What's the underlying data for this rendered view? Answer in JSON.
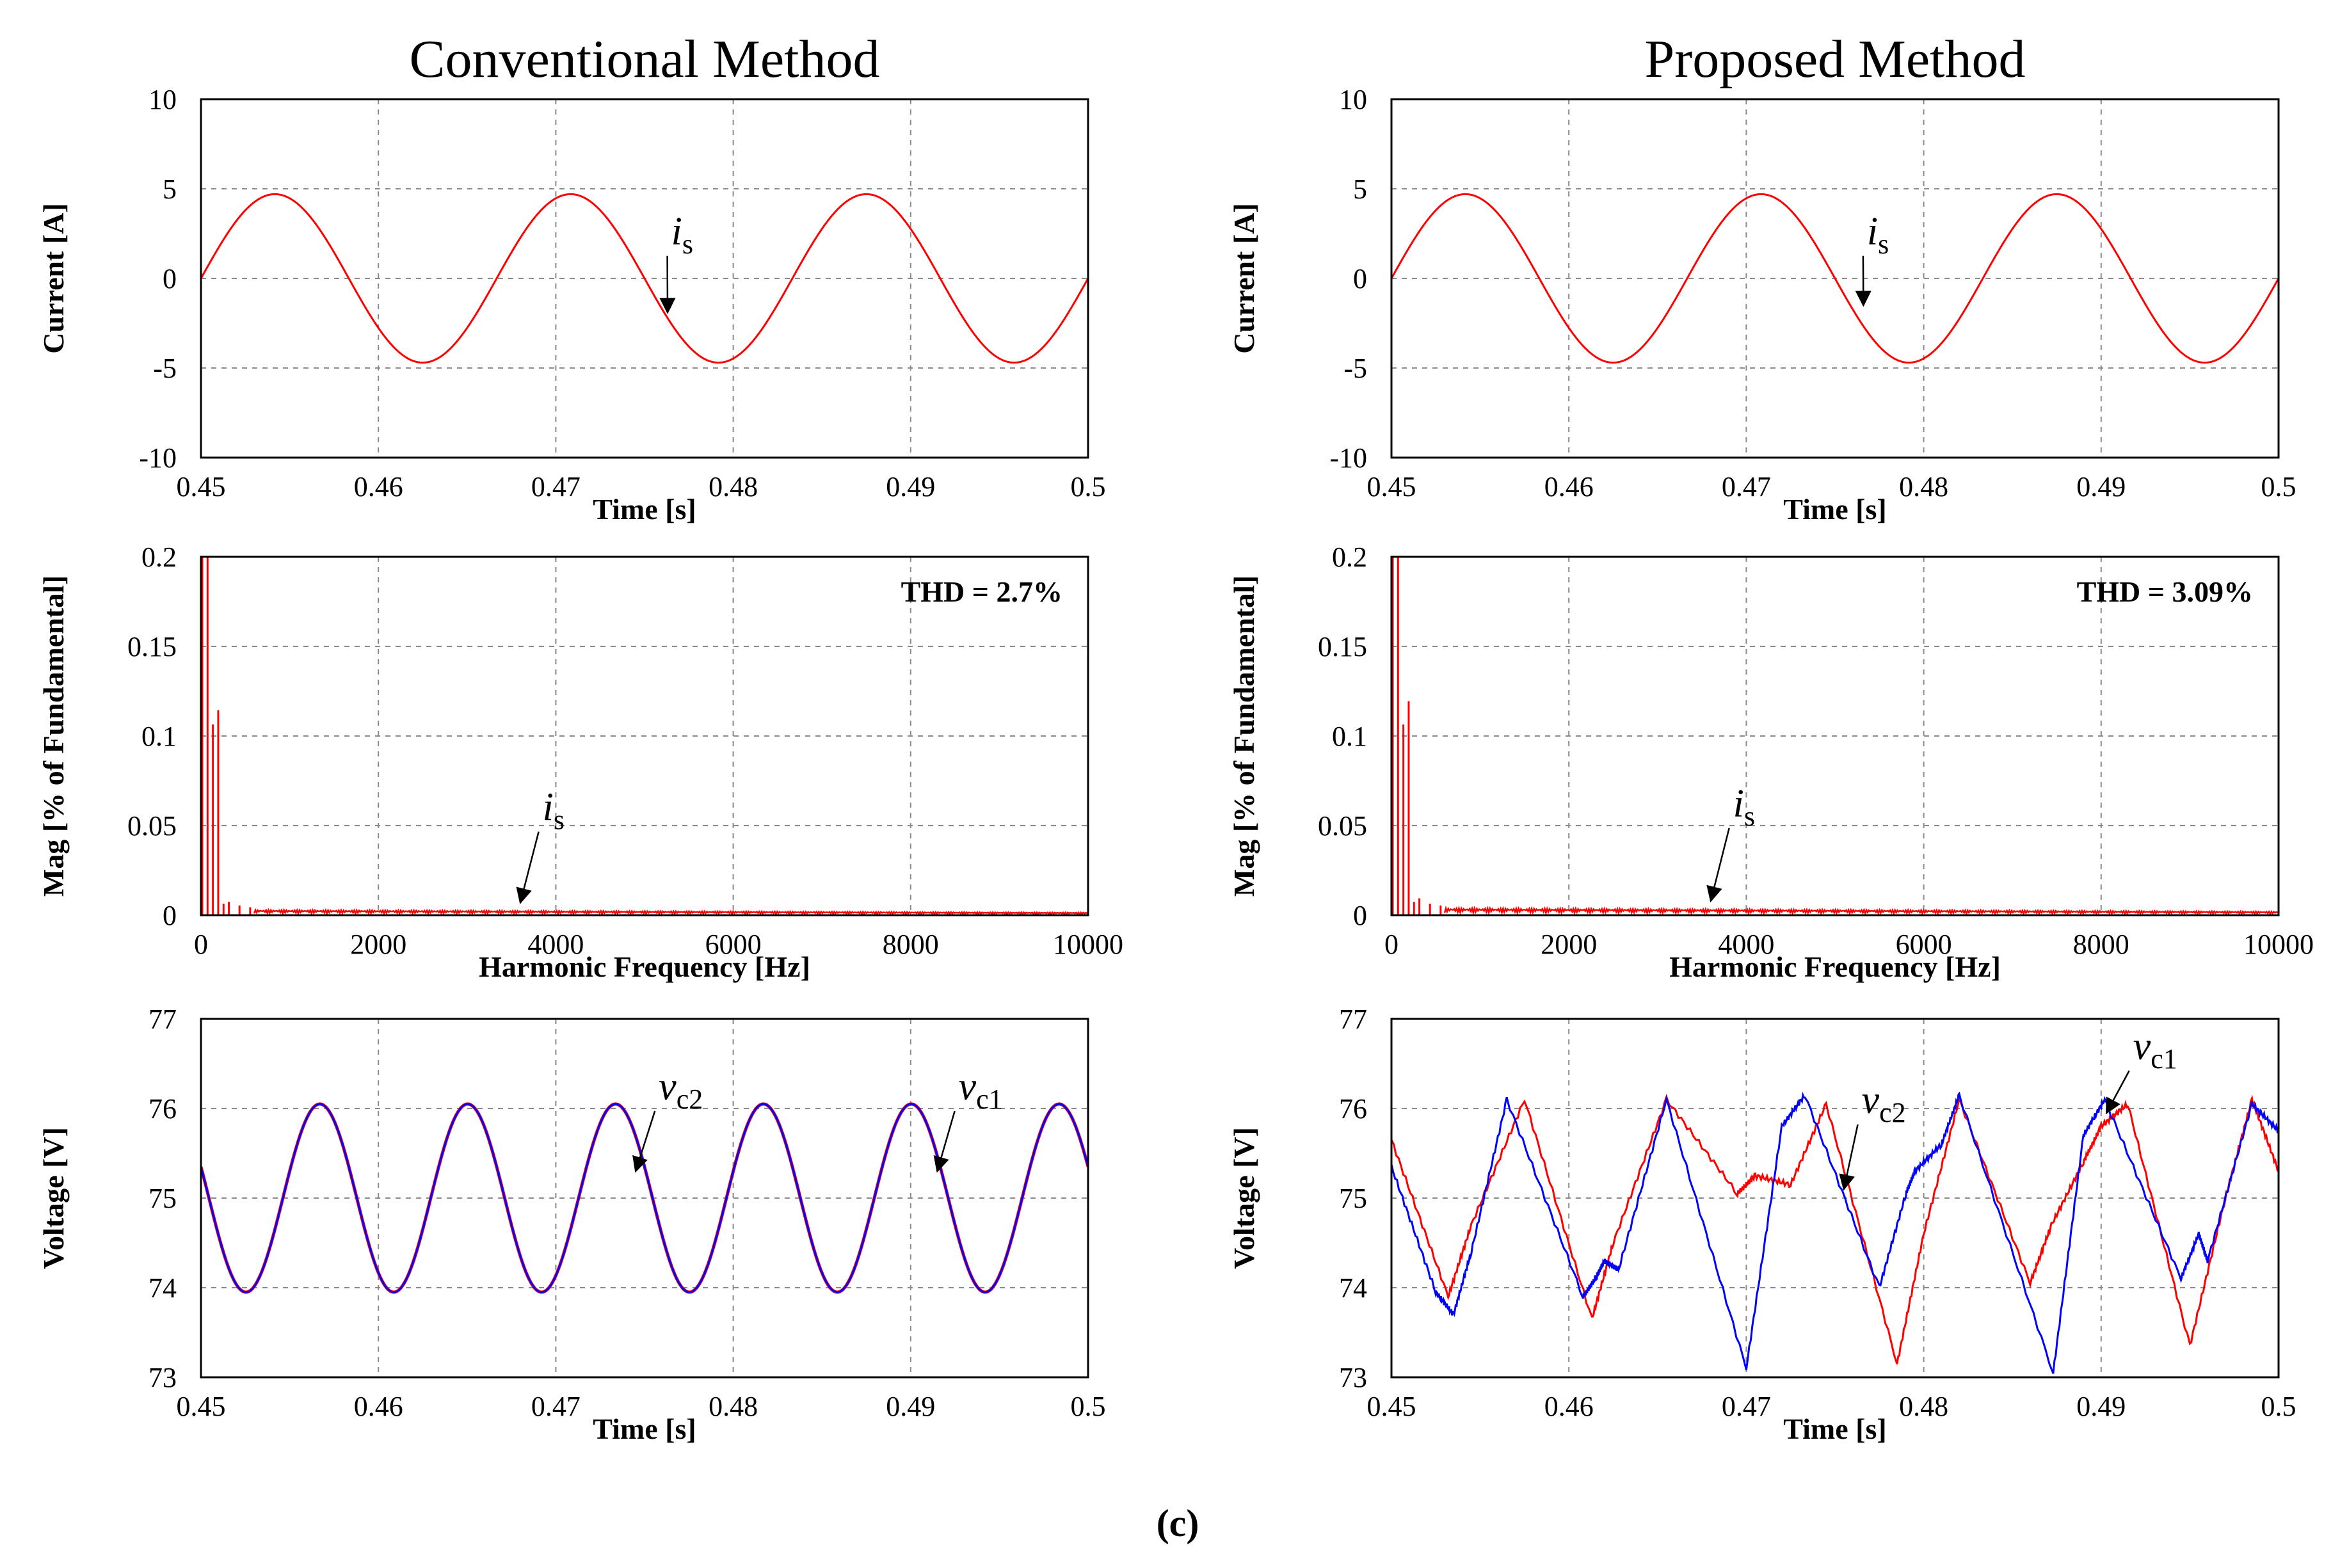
{
  "caption": "(c)",
  "chart_data": [
    {
      "id": "conv-current",
      "column": "left",
      "row": 0,
      "type": "line",
      "column_title": "Conventional Method",
      "xlabel": "Time [s]",
      "ylabel": "Current [A]",
      "xlim": [
        0.45,
        0.5
      ],
      "ylim": [
        -10,
        10
      ],
      "xticks": [
        0.45,
        0.46,
        0.47,
        0.48,
        0.49,
        0.5
      ],
      "xtick_labels": [
        "0.45",
        "0.46",
        "0.47",
        "0.48",
        "0.49",
        "0.5"
      ],
      "yticks": [
        10,
        5,
        0,
        -5,
        -10
      ],
      "ytick_labels": [
        "10",
        "5",
        "0",
        "-5",
        "-10"
      ],
      "grid": true,
      "series": [
        {
          "name": "i_s",
          "color": "#ff0000",
          "kind": "sine",
          "amplitude": 4.7,
          "offset": 0,
          "frequency": 60,
          "phase_time": 0.45
        }
      ],
      "annotations": [
        {
          "symbol": "i",
          "subscript": "s",
          "text_at": [
            0.4765,
            1.9
          ],
          "arrow_to": [
            0.4763,
            -1.9
          ]
        }
      ]
    },
    {
      "id": "prop-current",
      "column": "right",
      "row": 0,
      "type": "line",
      "column_title": "Proposed Method",
      "xlabel": "Time [s]",
      "ylabel": "Current [A]",
      "xlim": [
        0.45,
        0.5
      ],
      "ylim": [
        -10,
        10
      ],
      "xticks": [
        0.45,
        0.46,
        0.47,
        0.48,
        0.49,
        0.5
      ],
      "xtick_labels": [
        "0.45",
        "0.46",
        "0.47",
        "0.48",
        "0.49",
        "0.5"
      ],
      "yticks": [
        10,
        5,
        0,
        -5,
        -10
      ],
      "ytick_labels": [
        "10",
        "5",
        "0",
        "-5",
        "-10"
      ],
      "grid": true,
      "series": [
        {
          "name": "i_s",
          "color": "#ff0000",
          "kind": "sine",
          "amplitude": 4.7,
          "offset": 0,
          "frequency": 60,
          "phase_time": 0.45
        }
      ],
      "annotations": [
        {
          "symbol": "i",
          "subscript": "s",
          "text_at": [
            0.4768,
            1.9
          ],
          "arrow_to": [
            0.4766,
            -1.5
          ]
        }
      ]
    },
    {
      "id": "conv-fft",
      "column": "left",
      "row": 1,
      "type": "bar",
      "xlabel": "Harmonic Frequency [Hz]",
      "ylabel": "Mag [% of Fundamental]",
      "xlim": [
        0,
        10000
      ],
      "ylim": [
        0,
        0.2
      ],
      "xticks": [
        0,
        2000,
        4000,
        6000,
        8000,
        10000
      ],
      "xtick_labels": [
        "0",
        "2000",
        "4000",
        "6000",
        "8000",
        "10000"
      ],
      "yticks": [
        0.2,
        0.15,
        0.1,
        0.05,
        0
      ],
      "ytick_labels": [
        "0.2",
        "0.15",
        "0.1",
        "0.05",
        "0"
      ],
      "grid": true,
      "thd_label": "THD = 2.7%",
      "series": [
        {
          "name": "i_s",
          "color": "#ff0000",
          "kind": "spectrum",
          "peaks": [
            [
              0,
              0.2
            ],
            [
              60,
              0.2
            ],
            [
              120,
              0.105
            ],
            [
              180,
              0.113
            ],
            [
              240,
              0.005
            ],
            [
              300,
              0.006
            ],
            [
              420,
              0.004
            ],
            [
              540,
              0.003
            ]
          ],
          "noise_floor": 0.003
        }
      ],
      "annotations": [
        {
          "symbol": "i",
          "subscript": "s",
          "text_at": [
            3850,
            0.053
          ],
          "arrow_to": [
            3600,
            0.007
          ]
        }
      ]
    },
    {
      "id": "prop-fft",
      "column": "right",
      "row": 1,
      "type": "bar",
      "xlabel": "Harmonic Frequency [Hz]",
      "ylabel": "Mag [% of Fundamental]",
      "xlim": [
        0,
        10000
      ],
      "ylim": [
        0,
        0.2
      ],
      "xticks": [
        0,
        2000,
        4000,
        6000,
        8000,
        10000
      ],
      "xtick_labels": [
        "0",
        "2000",
        "4000",
        "6000",
        "8000",
        "10000"
      ],
      "yticks": [
        0.2,
        0.15,
        0.1,
        0.05,
        0
      ],
      "ytick_labels": [
        "0.2",
        "0.15",
        "0.1",
        "0.05",
        "0"
      ],
      "grid": true,
      "thd_label": "THD = 3.09%",
      "series": [
        {
          "name": "i_s",
          "color": "#ff0000",
          "kind": "spectrum",
          "peaks": [
            [
              0,
              0.2
            ],
            [
              60,
              0.2
            ],
            [
              120,
              0.105
            ],
            [
              180,
              0.118
            ],
            [
              240,
              0.006
            ],
            [
              300,
              0.008
            ],
            [
              420,
              0.005
            ],
            [
              540,
              0.004
            ]
          ],
          "noise_floor": 0.004
        }
      ],
      "annotations": [
        {
          "symbol": "i",
          "subscript": "s",
          "text_at": [
            3850,
            0.055
          ],
          "arrow_to": [
            3600,
            0.008
          ]
        }
      ]
    },
    {
      "id": "conv-voltage",
      "column": "left",
      "row": 2,
      "type": "line",
      "xlabel": "Time [s]",
      "ylabel": "Voltage [V]",
      "xlim": [
        0.45,
        0.5
      ],
      "ylim": [
        73,
        77
      ],
      "xticks": [
        0.45,
        0.46,
        0.47,
        0.48,
        0.49,
        0.5
      ],
      "xtick_labels": [
        "0.45",
        "0.46",
        "0.47",
        "0.48",
        "0.49",
        "0.5"
      ],
      "yticks": [
        77,
        76,
        75,
        74,
        73
      ],
      "ytick_labels": [
        "77",
        "76",
        "75",
        "74",
        "73"
      ],
      "grid": true,
      "series": [
        {
          "name": "v_c1",
          "color": "#ff0000",
          "kind": "ripple",
          "mean": 75,
          "amplitude": 1.05,
          "frequency": 120,
          "peak_time": 0.4567
        },
        {
          "name": "v_c2",
          "color": "#0000ff",
          "kind": "ripple",
          "mean": 75,
          "amplitude": 1.05,
          "frequency": 120,
          "peak_time": 0.4567
        }
      ],
      "annotations": [
        {
          "symbol": "v",
          "subscript": "c2",
          "text_at": [
            0.4758,
            76.1
          ],
          "arrow_to": [
            0.4745,
            75.3
          ]
        },
        {
          "symbol": "v",
          "subscript": "c1",
          "text_at": [
            0.4927,
            76.1
          ],
          "arrow_to": [
            0.4915,
            75.3
          ]
        }
      ]
    },
    {
      "id": "prop-voltage",
      "column": "right",
      "row": 2,
      "type": "line",
      "xlabel": "Time [s]",
      "ylabel": "Voltage [V]",
      "xlim": [
        0.45,
        0.5
      ],
      "ylim": [
        73,
        77
      ],
      "xticks": [
        0.45,
        0.46,
        0.47,
        0.48,
        0.49,
        0.5
      ],
      "xtick_labels": [
        "0.45",
        "0.46",
        "0.47",
        "0.48",
        "0.49",
        "0.5"
      ],
      "yticks": [
        77,
        76,
        75,
        74,
        73
      ],
      "ytick_labels": [
        "77",
        "76",
        "75",
        "74",
        "73"
      ],
      "grid": true,
      "series": [
        {
          "name": "v_c1",
          "color": "#ff0000",
          "kind": "points",
          "points": [
            [
              0.45,
              75.65
            ],
            [
              0.4532,
              73.9
            ],
            [
              0.4545,
              74.7
            ],
            [
              0.4575,
              76.1
            ],
            [
              0.4613,
              73.65
            ],
            [
              0.4625,
              74.5
            ],
            [
              0.4655,
              76.1
            ],
            [
              0.4695,
              75.05
            ],
            [
              0.4705,
              75.25
            ],
            [
              0.4725,
              75.15
            ],
            [
              0.4745,
              76.05
            ],
            [
              0.4785,
              73.15
            ],
            [
              0.48,
              74.6
            ],
            [
              0.482,
              76.1
            ],
            [
              0.486,
              74.05
            ],
            [
              0.4872,
              74.7
            ],
            [
              0.489,
              75.4
            ],
            [
              0.49,
              75.8
            ],
            [
              0.4915,
              76.05
            ],
            [
              0.495,
              73.35
            ],
            [
              0.497,
              75.0
            ],
            [
              0.4985,
              76.1
            ],
            [
              0.5,
              75.3
            ]
          ]
        },
        {
          "name": "v_c2",
          "color": "#0000ff",
          "kind": "points",
          "points": [
            [
              0.45,
              75.35
            ],
            [
              0.4525,
              73.95
            ],
            [
              0.4535,
              73.7
            ],
            [
              0.4545,
              74.4
            ],
            [
              0.4565,
              76.1
            ],
            [
              0.4608,
              73.9
            ],
            [
              0.4615,
              74.1
            ],
            [
              0.462,
              74.3
            ],
            [
              0.4628,
              74.2
            ],
            [
              0.4655,
              76.1
            ],
            [
              0.47,
              73.1
            ],
            [
              0.472,
              75.8
            ],
            [
              0.4733,
              76.15
            ],
            [
              0.4775,
              74.0
            ],
            [
              0.479,
              75.05
            ],
            [
              0.4795,
              75.3
            ],
            [
              0.481,
              75.6
            ],
            [
              0.482,
              76.15
            ],
            [
              0.4873,
              73.05
            ],
            [
              0.489,
              75.7
            ],
            [
              0.4902,
              76.1
            ],
            [
              0.4945,
              74.1
            ],
            [
              0.4955,
              74.6
            ],
            [
              0.496,
              74.3
            ],
            [
              0.4985,
              76.05
            ],
            [
              0.5,
              75.75
            ]
          ]
        }
      ],
      "annotations": [
        {
          "symbol": "v",
          "subscript": "c2",
          "text_at": [
            0.4765,
            75.95
          ],
          "arrow_to": [
            0.4755,
            75.1
          ]
        },
        {
          "symbol": "v",
          "subscript": "c1",
          "text_at": [
            0.4918,
            76.55
          ],
          "arrow_to": [
            0.4903,
            75.95
          ]
        }
      ]
    }
  ]
}
